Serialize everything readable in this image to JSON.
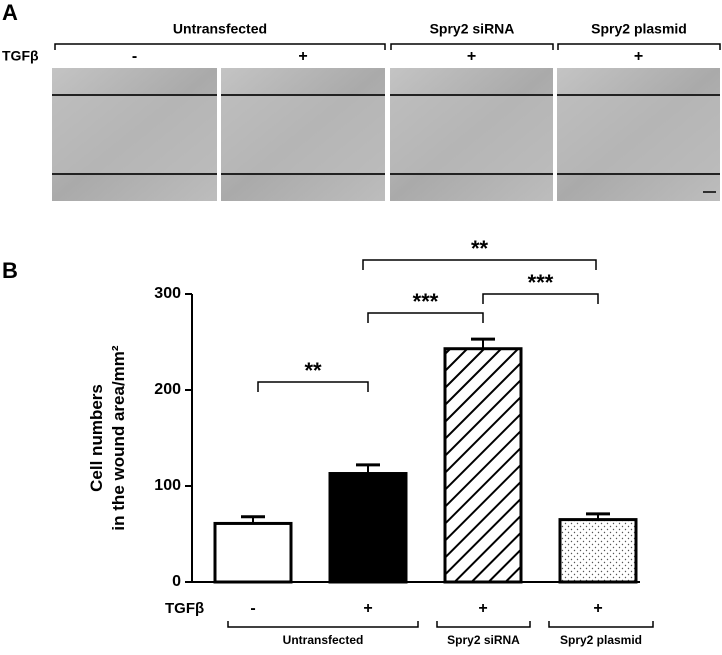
{
  "panel_a": {
    "label": "A",
    "row_label": "TGFβ",
    "groups": [
      "Untransfected",
      "Spry2 siRNA",
      "Spry2 plasmid"
    ],
    "signs": [
      "-",
      "+",
      "+",
      "+"
    ]
  },
  "chart_data": {
    "type": "bar",
    "panel_label": "B",
    "y_label": [
      "Cell numbers",
      "in the wound area/mm²"
    ],
    "x_row_label": "TGFβ",
    "categories": [
      "-",
      "+",
      "+",
      "+"
    ],
    "groups": [
      "Untransfected",
      "Spry2 siRNA",
      "Spry2 plasmid"
    ],
    "values": [
      61,
      113,
      243,
      65
    ],
    "errors": [
      7,
      9,
      10,
      6
    ],
    "fills": [
      "white",
      "black",
      "diagonal-hatch",
      "dots"
    ],
    "annotations": [
      "**",
      "***",
      "***",
      "**"
    ],
    "ylim": [
      0,
      300
    ],
    "yticks": [
      0,
      100,
      200,
      300
    ]
  }
}
